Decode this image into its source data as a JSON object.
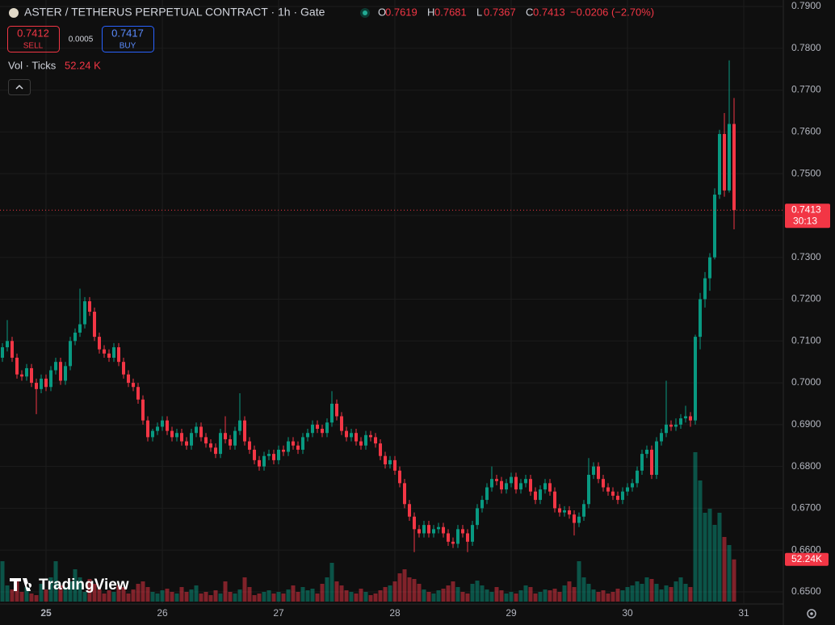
{
  "chart_data": {
    "type": "candlestick",
    "title": "ASTER / TETHERUS PERPETUAL CONTRACT · 1h · Gate",
    "ohlc_legend": [
      {
        "key": "O",
        "value": 0.7619
      },
      {
        "key": "H",
        "value": 0.7681
      },
      {
        "key": "L",
        "value": 0.7367
      },
      {
        "key": "C",
        "value": 0.7413
      }
    ],
    "change_label": "−0.0206 (−2.70%)",
    "sell": {
      "price": 0.7412,
      "label": "SELL"
    },
    "spread": 0.0005,
    "buy": {
      "price": 0.7417,
      "label": "BUY"
    },
    "volume_name": "Vol · Ticks",
    "volume_legend_label": "52.24 K",
    "volume_tag_label": "52.24K",
    "countdown": "30:13",
    "brand": "TradingView",
    "up_color": "#089981",
    "down_color": "#f23645",
    "grid": true,
    "ylim": [
      0.65,
      0.79
    ],
    "yticks": [
      {
        "value": 0.79,
        "label": "0.7900"
      },
      {
        "value": 0.78,
        "label": "0.7800"
      },
      {
        "value": 0.77,
        "label": "0.7700"
      },
      {
        "value": 0.76,
        "label": "0.7600"
      },
      {
        "value": 0.75,
        "label": "0.7500"
      },
      {
        "value": 0.74,
        "label": "0.7400"
      },
      {
        "value": 0.73,
        "label": "0.7300"
      },
      {
        "value": 0.72,
        "label": "0.7200"
      },
      {
        "value": 0.71,
        "label": "0.7100"
      },
      {
        "value": 0.7,
        "label": "0.7000"
      },
      {
        "value": 0.69,
        "label": "0.6900"
      },
      {
        "value": 0.68,
        "label": "0.6800"
      },
      {
        "value": 0.67,
        "label": "0.6700"
      },
      {
        "value": 0.66,
        "label": "0.6600"
      },
      {
        "value": 0.65,
        "label": "0.6500"
      }
    ],
    "categories": [
      null,
      null,
      null,
      null,
      null,
      null,
      null,
      null,
      null,
      "25",
      null,
      null,
      null,
      null,
      null,
      null,
      null,
      null,
      null,
      null,
      null,
      null,
      null,
      null,
      null,
      null,
      null,
      null,
      null,
      null,
      null,
      null,
      null,
      "26",
      null,
      null,
      null,
      null,
      null,
      null,
      null,
      null,
      null,
      null,
      null,
      null,
      null,
      null,
      null,
      null,
      null,
      null,
      null,
      null,
      null,
      null,
      null,
      "27",
      null,
      null,
      null,
      null,
      null,
      null,
      null,
      null,
      null,
      null,
      null,
      null,
      null,
      null,
      null,
      null,
      null,
      null,
      null,
      null,
      null,
      null,
      null,
      "28",
      null,
      null,
      null,
      null,
      null,
      null,
      null,
      null,
      null,
      null,
      null,
      null,
      null,
      null,
      null,
      null,
      null,
      null,
      null,
      null,
      null,
      null,
      null,
      "29",
      null,
      null,
      null,
      null,
      null,
      null,
      null,
      null,
      null,
      null,
      null,
      null,
      null,
      null,
      null,
      null,
      null,
      null,
      null,
      null,
      null,
      null,
      null,
      "30",
      null,
      null,
      null,
      null,
      null,
      null,
      null,
      null,
      null,
      null,
      null,
      null,
      null,
      null,
      null,
      null,
      null,
      null,
      null,
      null,
      null,
      null,
      null,
      "31"
    ],
    "ohlc": [
      [
        0.706,
        0.7095,
        0.705,
        0.7085
      ],
      [
        0.7085,
        0.715,
        0.7075,
        0.71
      ],
      [
        0.71,
        0.711,
        0.705,
        0.706
      ],
      [
        0.706,
        0.707,
        0.701,
        0.702
      ],
      [
        0.702,
        0.703,
        0.7005,
        0.7015
      ],
      [
        0.7015,
        0.7045,
        0.7005,
        0.7035
      ],
      [
        0.7035,
        0.7045,
        0.699,
        0.7
      ],
      [
        0.7,
        0.701,
        0.6925,
        0.6985
      ],
      [
        0.6985,
        0.702,
        0.6975,
        0.701
      ],
      [
        0.701,
        0.702,
        0.698,
        0.699
      ],
      [
        0.699,
        0.704,
        0.698,
        0.703
      ],
      [
        0.703,
        0.706,
        0.702,
        0.705
      ],
      [
        0.705,
        0.706,
        0.6995,
        0.7005
      ],
      [
        0.7005,
        0.705,
        0.6995,
        0.704
      ],
      [
        0.704,
        0.711,
        0.703,
        0.71
      ],
      [
        0.71,
        0.713,
        0.709,
        0.712
      ],
      [
        0.712,
        0.7225,
        0.711,
        0.714
      ],
      [
        0.714,
        0.7205,
        0.713,
        0.7195
      ],
      [
        0.7195,
        0.7205,
        0.716,
        0.717
      ],
      [
        0.717,
        0.718,
        0.71,
        0.711
      ],
      [
        0.711,
        0.712,
        0.707,
        0.708
      ],
      [
        0.708,
        0.709,
        0.706,
        0.707
      ],
      [
        0.707,
        0.708,
        0.705,
        0.706
      ],
      [
        0.706,
        0.7095,
        0.705,
        0.7085
      ],
      [
        0.7085,
        0.7095,
        0.704,
        0.705
      ],
      [
        0.705,
        0.706,
        0.701,
        0.702
      ],
      [
        0.702,
        0.703,
        0.699,
        0.7
      ],
      [
        0.7,
        0.701,
        0.698,
        0.699
      ],
      [
        0.699,
        0.7,
        0.695,
        0.696
      ],
      [
        0.696,
        0.697,
        0.69,
        0.691
      ],
      [
        0.691,
        0.692,
        0.686,
        0.687
      ],
      [
        0.687,
        0.689,
        0.686,
        0.6885
      ],
      [
        0.6885,
        0.6905,
        0.6875,
        0.6895
      ],
      [
        0.6895,
        0.692,
        0.6885,
        0.691
      ],
      [
        0.691,
        0.692,
        0.6875,
        0.6885
      ],
      [
        0.6885,
        0.6895,
        0.686,
        0.687
      ],
      [
        0.687,
        0.689,
        0.686,
        0.688
      ],
      [
        0.688,
        0.689,
        0.685,
        0.686
      ],
      [
        0.686,
        0.687,
        0.684,
        0.685
      ],
      [
        0.685,
        0.689,
        0.684,
        0.688
      ],
      [
        0.688,
        0.6905,
        0.687,
        0.6895
      ],
      [
        0.6895,
        0.6905,
        0.686,
        0.687
      ],
      [
        0.687,
        0.688,
        0.6845,
        0.6855
      ],
      [
        0.6855,
        0.6865,
        0.6835,
        0.6845
      ],
      [
        0.6845,
        0.6855,
        0.682,
        0.683
      ],
      [
        0.683,
        0.689,
        0.682,
        0.688
      ],
      [
        0.688,
        0.692,
        0.6855,
        0.6865
      ],
      [
        0.6865,
        0.6875,
        0.684,
        0.685
      ],
      [
        0.685,
        0.6895,
        0.684,
        0.6885
      ],
      [
        0.6885,
        0.6975,
        0.6875,
        0.691
      ],
      [
        0.691,
        0.692,
        0.685,
        0.686
      ],
      [
        0.686,
        0.687,
        0.683,
        0.684
      ],
      [
        0.684,
        0.685,
        0.6805,
        0.6815
      ],
      [
        0.6815,
        0.6825,
        0.679,
        0.68
      ],
      [
        0.68,
        0.6835,
        0.679,
        0.6825
      ],
      [
        0.6825,
        0.684,
        0.6815,
        0.683
      ],
      [
        0.683,
        0.684,
        0.6805,
        0.6815
      ],
      [
        0.6815,
        0.685,
        0.6805,
        0.684
      ],
      [
        0.684,
        0.685,
        0.6825,
        0.6835
      ],
      [
        0.6835,
        0.687,
        0.6825,
        0.686
      ],
      [
        0.686,
        0.687,
        0.684,
        0.685
      ],
      [
        0.685,
        0.686,
        0.683,
        0.684
      ],
      [
        0.684,
        0.688,
        0.683,
        0.687
      ],
      [
        0.687,
        0.689,
        0.686,
        0.688
      ],
      [
        0.688,
        0.691,
        0.687,
        0.69
      ],
      [
        0.69,
        0.691,
        0.688,
        0.689
      ],
      [
        0.689,
        0.69,
        0.687,
        0.688
      ],
      [
        0.688,
        0.6915,
        0.687,
        0.6905
      ],
      [
        0.6905,
        0.698,
        0.6895,
        0.695
      ],
      [
        0.695,
        0.696,
        0.691,
        0.692
      ],
      [
        0.692,
        0.693,
        0.6875,
        0.6885
      ],
      [
        0.6885,
        0.6895,
        0.686,
        0.687
      ],
      [
        0.687,
        0.689,
        0.686,
        0.688
      ],
      [
        0.688,
        0.689,
        0.685,
        0.686
      ],
      [
        0.686,
        0.687,
        0.684,
        0.685
      ],
      [
        0.685,
        0.6885,
        0.684,
        0.6875
      ],
      [
        0.6875,
        0.6885,
        0.686,
        0.687
      ],
      [
        0.687,
        0.688,
        0.6845,
        0.6855
      ],
      [
        0.6855,
        0.6865,
        0.6815,
        0.6825
      ],
      [
        0.6825,
        0.6835,
        0.6795,
        0.6805
      ],
      [
        0.6805,
        0.6825,
        0.6795,
        0.6815
      ],
      [
        0.6815,
        0.6825,
        0.678,
        0.679
      ],
      [
        0.679,
        0.68,
        0.675,
        0.676
      ],
      [
        0.676,
        0.677,
        0.67,
        0.671
      ],
      [
        0.671,
        0.672,
        0.667,
        0.668
      ],
      [
        0.668,
        0.669,
        0.6595,
        0.665
      ],
      [
        0.665,
        0.666,
        0.663,
        0.664
      ],
      [
        0.664,
        0.667,
        0.663,
        0.666
      ],
      [
        0.666,
        0.667,
        0.663,
        0.664
      ],
      [
        0.664,
        0.666,
        0.663,
        0.665
      ],
      [
        0.665,
        0.6665,
        0.664,
        0.6655
      ],
      [
        0.6655,
        0.6665,
        0.663,
        0.664
      ],
      [
        0.664,
        0.665,
        0.661,
        0.662
      ],
      [
        0.662,
        0.663,
        0.6605,
        0.6615
      ],
      [
        0.6615,
        0.666,
        0.6605,
        0.665
      ],
      [
        0.665,
        0.666,
        0.663,
        0.664
      ],
      [
        0.664,
        0.665,
        0.6595,
        0.662
      ],
      [
        0.662,
        0.667,
        0.661,
        0.666
      ],
      [
        0.666,
        0.671,
        0.665,
        0.67
      ],
      [
        0.67,
        0.673,
        0.669,
        0.672
      ],
      [
        0.672,
        0.676,
        0.671,
        0.675
      ],
      [
        0.675,
        0.68,
        0.674,
        0.677
      ],
      [
        0.677,
        0.678,
        0.6755,
        0.6765
      ],
      [
        0.6765,
        0.6775,
        0.6735,
        0.6745
      ],
      [
        0.6745,
        0.677,
        0.6735,
        0.676
      ],
      [
        0.676,
        0.6785,
        0.675,
        0.6775
      ],
      [
        0.6775,
        0.6785,
        0.6735,
        0.6745
      ],
      [
        0.6745,
        0.677,
        0.6735,
        0.676
      ],
      [
        0.676,
        0.678,
        0.675,
        0.677
      ],
      [
        0.677,
        0.678,
        0.673,
        0.674
      ],
      [
        0.674,
        0.675,
        0.671,
        0.672
      ],
      [
        0.672,
        0.6755,
        0.671,
        0.6745
      ],
      [
        0.6745,
        0.677,
        0.6735,
        0.676
      ],
      [
        0.676,
        0.677,
        0.673,
        0.674
      ],
      [
        0.674,
        0.675,
        0.669,
        0.67
      ],
      [
        0.67,
        0.671,
        0.668,
        0.669
      ],
      [
        0.669,
        0.6705,
        0.668,
        0.6695
      ],
      [
        0.6695,
        0.6705,
        0.6675,
        0.6685
      ],
      [
        0.6685,
        0.6695,
        0.6635,
        0.6665
      ],
      [
        0.6665,
        0.669,
        0.6655,
        0.668
      ],
      [
        0.668,
        0.672,
        0.667,
        0.671
      ],
      [
        0.671,
        0.682,
        0.67,
        0.678
      ],
      [
        0.678,
        0.681,
        0.677,
        0.68
      ],
      [
        0.68,
        0.681,
        0.676,
        0.677
      ],
      [
        0.677,
        0.678,
        0.674,
        0.675
      ],
      [
        0.675,
        0.676,
        0.673,
        0.674
      ],
      [
        0.674,
        0.675,
        0.672,
        0.673
      ],
      [
        0.673,
        0.674,
        0.671,
        0.672
      ],
      [
        0.672,
        0.675,
        0.671,
        0.674
      ],
      [
        0.674,
        0.676,
        0.673,
        0.675
      ],
      [
        0.675,
        0.677,
        0.674,
        0.676
      ],
      [
        0.676,
        0.68,
        0.675,
        0.679
      ],
      [
        0.679,
        0.684,
        0.678,
        0.683
      ],
      [
        0.683,
        0.685,
        0.682,
        0.684
      ],
      [
        0.684,
        0.685,
        0.677,
        0.678
      ],
      [
        0.678,
        0.687,
        0.677,
        0.686
      ],
      [
        0.686,
        0.689,
        0.685,
        0.688
      ],
      [
        0.688,
        0.7005,
        0.687,
        0.69
      ],
      [
        0.69,
        0.691,
        0.6885,
        0.6895
      ],
      [
        0.6895,
        0.6915,
        0.6885,
        0.69
      ],
      [
        0.69,
        0.6925,
        0.689,
        0.6915
      ],
      [
        0.6915,
        0.6945,
        0.6905,
        0.692
      ],
      [
        0.692,
        0.693,
        0.6895,
        0.691
      ],
      [
        0.691,
        0.7115,
        0.69,
        0.711
      ],
      [
        0.711,
        0.7215,
        0.708,
        0.72
      ],
      [
        0.72,
        0.7265,
        0.718,
        0.725
      ],
      [
        0.725,
        0.731,
        0.722,
        0.73
      ],
      [
        0.73,
        0.7465,
        0.7295,
        0.745
      ],
      [
        0.745,
        0.7605,
        0.744,
        0.7595
      ],
      [
        0.7595,
        0.7645,
        0.7445,
        0.746
      ],
      [
        0.746,
        0.7771,
        0.7455,
        0.7619
      ],
      [
        0.7619,
        0.7681,
        0.7367,
        0.7413
      ],
      null,
      null
    ],
    "volume": [
      50,
      20,
      15,
      25,
      12,
      18,
      10,
      8,
      22,
      15,
      30,
      50,
      20,
      18,
      25,
      40,
      30,
      12,
      28,
      22,
      15,
      10,
      14,
      12,
      20,
      18,
      10,
      15,
      22,
      25,
      18,
      12,
      10,
      14,
      16,
      12,
      10,
      18,
      12,
      15,
      20,
      10,
      12,
      8,
      14,
      10,
      25,
      12,
      10,
      15,
      30,
      18,
      8,
      10,
      12,
      14,
      10,
      12,
      10,
      15,
      20,
      12,
      18,
      14,
      16,
      10,
      22,
      30,
      48,
      25,
      20,
      14,
      12,
      10,
      16,
      12,
      8,
      10,
      14,
      18,
      20,
      25,
      35,
      40,
      30,
      28,
      22,
      15,
      12,
      10,
      14,
      16,
      20,
      25,
      18,
      12,
      10,
      22,
      26,
      20,
      15,
      12,
      18,
      14,
      10,
      12,
      10,
      14,
      20,
      18,
      10,
      12,
      15,
      14,
      16,
      12,
      20,
      25,
      18,
      50,
      30,
      22,
      15,
      12,
      14,
      10,
      12,
      16,
      14,
      18,
      20,
      25,
      22,
      30,
      28,
      22,
      15,
      20,
      18,
      25,
      30,
      22,
      18,
      185,
      150,
      110,
      115,
      95,
      110,
      80,
      70,
      52.24,
      null,
      null
    ]
  }
}
